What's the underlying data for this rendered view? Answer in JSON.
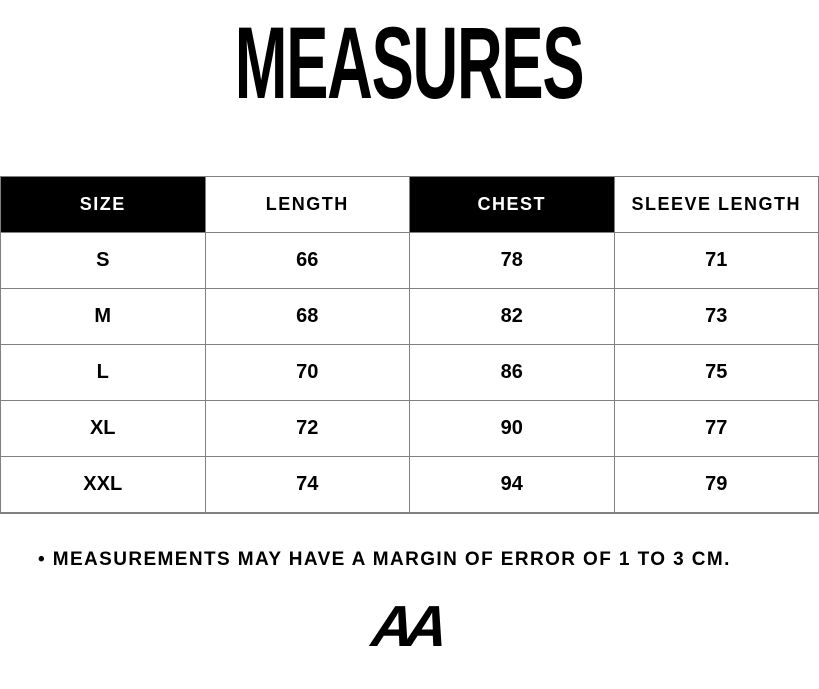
{
  "title": "MEASURES",
  "chart_data": {
    "type": "table",
    "title": "MEASURES",
    "columns": [
      "SIZE",
      "LENGTH",
      "CHEST",
      "SLEEVE LENGTH"
    ],
    "rows": [
      [
        "S",
        66,
        78,
        71
      ],
      [
        "M",
        68,
        82,
        73
      ],
      [
        "L",
        70,
        86,
        75
      ],
      [
        "XL",
        72,
        90,
        77
      ],
      [
        "XXL",
        74,
        94,
        79
      ]
    ],
    "units": "cm",
    "note": "• MEASUREMENTS MAY HAVE A MARGIN OF ERROR OF 1 TO 3 CM.",
    "layout_hints": "header cells alternate black/white backgrounds; all text bold, centered; thin gray grid borders"
  },
  "table": {
    "columns": [
      {
        "label": "SIZE",
        "variant": "dark"
      },
      {
        "label": "LENGTH",
        "variant": "light"
      },
      {
        "label": "CHEST",
        "variant": "dark"
      },
      {
        "label": "SLEEVE LENGTH",
        "variant": "light"
      }
    ],
    "rows": [
      {
        "size": "S",
        "length": "66",
        "chest": "78",
        "sleeve": "71"
      },
      {
        "size": "M",
        "length": "68",
        "chest": "82",
        "sleeve": "73"
      },
      {
        "size": "L",
        "length": "70",
        "chest": "86",
        "sleeve": "75"
      },
      {
        "size": "XL",
        "length": "72",
        "chest": "90",
        "sleeve": "77"
      },
      {
        "size": "XXL",
        "length": "74",
        "chest": "94",
        "sleeve": "79"
      }
    ]
  },
  "note": "• MEASUREMENTS MAY HAVE A MARGIN OF ERROR OF 1 TO 3 CM.",
  "logo": "AA",
  "colors": {
    "background": "#ffffff",
    "text": "#000000",
    "header_dark_bg": "#000000",
    "header_dark_text": "#ffffff",
    "border": "#808080"
  }
}
